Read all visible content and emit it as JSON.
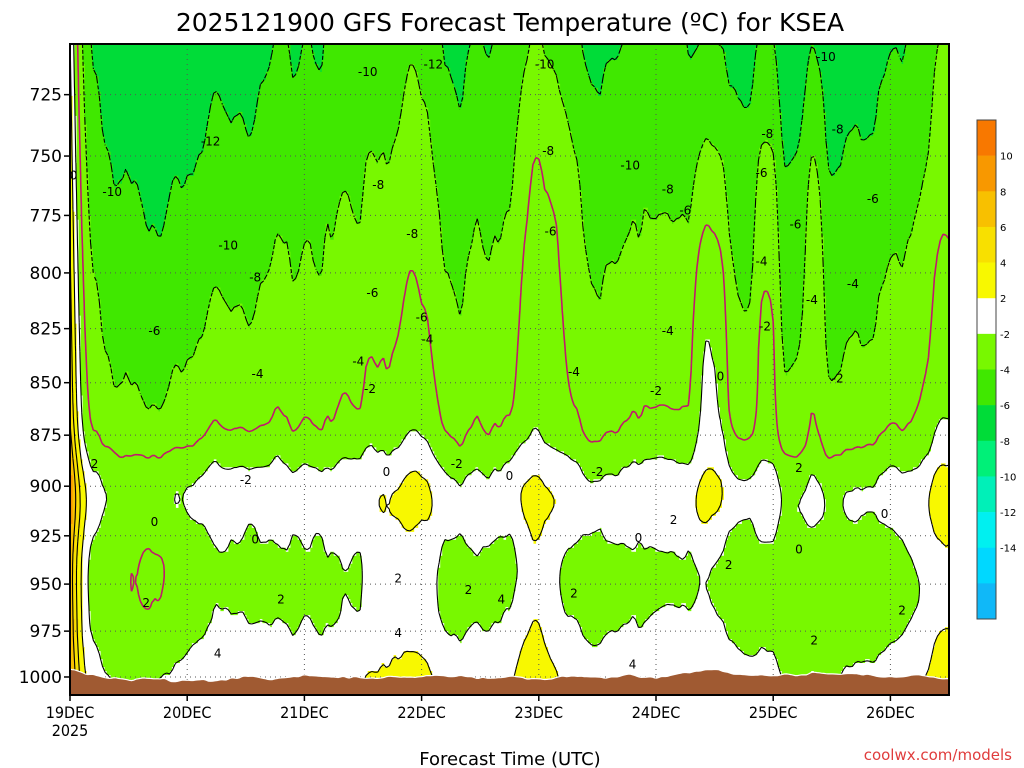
{
  "chart_data": {
    "type": "heatmap",
    "title": "2025121900 GFS Forecast Temperature (ºC) for KSEA",
    "xlabel": "Forecast Time (UTC)",
    "ylabel": "",
    "credit": "coolwx.com/models",
    "x_ticks": [
      {
        "label": "19DEC",
        "sub": "2025",
        "day": 0
      },
      {
        "label": "20DEC",
        "day": 1
      },
      {
        "label": "21DEC",
        "day": 2
      },
      {
        "label": "22DEC",
        "day": 3
      },
      {
        "label": "23DEC",
        "day": 4
      },
      {
        "label": "24DEC",
        "day": 5
      },
      {
        "label": "25DEC",
        "day": 6
      },
      {
        "label": "26DEC",
        "day": 7
      }
    ],
    "xlim_days": [
      0,
      7.5
    ],
    "y_ticks": [
      725,
      750,
      775,
      800,
      825,
      850,
      875,
      900,
      925,
      950,
      975,
      1000
    ],
    "ylim_hpa": [
      1010,
      705
    ],
    "grid": true,
    "colorbar": {
      "levels": [
        -16,
        -14,
        -12,
        -10,
        -8,
        -6,
        -4,
        -2,
        2,
        4,
        6,
        8,
        10,
        12
      ],
      "labels": [
        "10",
        "8",
        "6",
        "4",
        "2",
        "-2",
        "-4",
        "-6",
        "-8",
        "-10",
        "-12",
        "-14"
      ],
      "colors": [
        "#10b8f8",
        "#00d8ff",
        "#00f0f0",
        "#00f0b8",
        "#00f078",
        "#00dc38",
        "#40e800",
        "#78f800",
        "#ffffff",
        "#f8f800",
        "#f8e000",
        "#f8c000",
        "#f89800",
        "#f87800"
      ]
    },
    "ground_color": "#a05a32",
    "contour_color": "#000000",
    "zero_contour_color": "#c0186e",
    "contour_labels": [
      {
        "t": 0.03,
        "p": 758,
        "v": "0"
      },
      {
        "t": 0.21,
        "p": 889,
        "v": "2"
      },
      {
        "t": 0.36,
        "p": 765,
        "v": "-10"
      },
      {
        "t": 0.65,
        "p": 960,
        "v": "2"
      },
      {
        "t": 0.72,
        "p": 826,
        "v": "-6"
      },
      {
        "t": 0.72,
        "p": 918,
        "v": "0"
      },
      {
        "t": 1.2,
        "p": 744,
        "v": "-12"
      },
      {
        "t": 1.35,
        "p": 788,
        "v": "-10"
      },
      {
        "t": 1.26,
        "p": 987,
        "v": "4"
      },
      {
        "t": 1.58,
        "p": 802,
        "v": "-8"
      },
      {
        "t": 1.6,
        "p": 846,
        "v": "-4"
      },
      {
        "t": 1.5,
        "p": 897,
        "v": "-2"
      },
      {
        "t": 1.58,
        "p": 927,
        "v": "0"
      },
      {
        "t": 1.8,
        "p": 958,
        "v": "2"
      },
      {
        "t": 2.54,
        "p": 716,
        "v": "-10"
      },
      {
        "t": 2.58,
        "p": 809,
        "v": "-6"
      },
      {
        "t": 2.46,
        "p": 840,
        "v": "-4"
      },
      {
        "t": 2.56,
        "p": 853,
        "v": "-2"
      },
      {
        "t": 2.7,
        "p": 893,
        "v": "0"
      },
      {
        "t": 2.63,
        "p": 762,
        "v": "-8"
      },
      {
        "t": 2.8,
        "p": 947,
        "v": "2"
      },
      {
        "t": 2.8,
        "p": 976,
        "v": "4"
      },
      {
        "t": 3.1,
        "p": 713,
        "v": "-12"
      },
      {
        "t": 2.92,
        "p": 783,
        "v": "-8"
      },
      {
        "t": 3.0,
        "p": 820,
        "v": "-6"
      },
      {
        "t": 3.05,
        "p": 830,
        "v": "-4"
      },
      {
        "t": 3.3,
        "p": 889,
        "v": "-2"
      },
      {
        "t": 3.4,
        "p": 953,
        "v": "2"
      },
      {
        "t": 3.68,
        "p": 958,
        "v": "4"
      },
      {
        "t": 3.75,
        "p": 895,
        "v": "0"
      },
      {
        "t": 4.05,
        "p": 713,
        "v": "-10"
      },
      {
        "t": 4.08,
        "p": 748,
        "v": "-8"
      },
      {
        "t": 4.1,
        "p": 782,
        "v": "-6"
      },
      {
        "t": 4.3,
        "p": 955,
        "v": "2"
      },
      {
        "t": 4.3,
        "p": 845,
        "v": "-4"
      },
      {
        "t": 4.5,
        "p": 893,
        "v": "-2"
      },
      {
        "t": 4.85,
        "p": 926,
        "v": "0"
      },
      {
        "t": 4.8,
        "p": 993,
        "v": "4"
      },
      {
        "t": 4.78,
        "p": 754,
        "v": "-10"
      },
      {
        "t": 5.1,
        "p": 764,
        "v": "-8"
      },
      {
        "t": 5.25,
        "p": 773,
        "v": "-6"
      },
      {
        "t": 5.1,
        "p": 826,
        "v": "-4"
      },
      {
        "t": 5.0,
        "p": 854,
        "v": "-2"
      },
      {
        "t": 5.15,
        "p": 917,
        "v": "2"
      },
      {
        "t": 5.55,
        "p": 847,
        "v": "0"
      },
      {
        "t": 5.62,
        "p": 940,
        "v": "2"
      },
      {
        "t": 5.95,
        "p": 741,
        "v": "-8"
      },
      {
        "t": 5.9,
        "p": 757,
        "v": "-6"
      },
      {
        "t": 5.9,
        "p": 795,
        "v": "-4"
      },
      {
        "t": 5.93,
        "p": 824,
        "v": "-2"
      },
      {
        "t": 6.19,
        "p": 779,
        "v": "-6"
      },
      {
        "t": 6.22,
        "p": 891,
        "v": "2"
      },
      {
        "t": 6.22,
        "p": 932,
        "v": "0"
      },
      {
        "t": 6.35,
        "p": 980,
        "v": "2"
      },
      {
        "t": 6.33,
        "p": 812,
        "v": "-4"
      },
      {
        "t": 6.55,
        "p": 739,
        "v": "-8"
      },
      {
        "t": 6.55,
        "p": 848,
        "v": "-2"
      },
      {
        "t": 6.45,
        "p": 710,
        "v": "-10"
      },
      {
        "t": 6.85,
        "p": 768,
        "v": "-6"
      },
      {
        "t": 6.68,
        "p": 805,
        "v": "-4"
      },
      {
        "t": 6.95,
        "p": 914,
        "v": "0"
      },
      {
        "t": 7.1,
        "p": 964,
        "v": "2"
      }
    ]
  }
}
